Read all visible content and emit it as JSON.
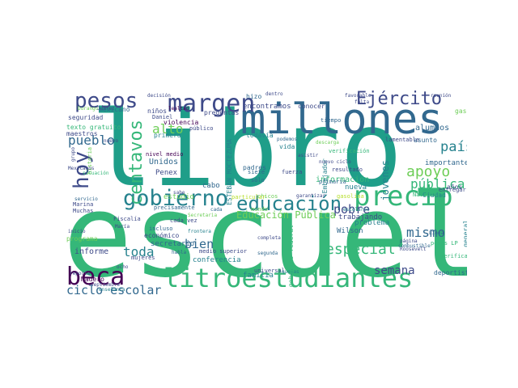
{
  "palette": [
    "#440154",
    "#482878",
    "#3e4a89",
    "#31688e",
    "#26828e",
    "#1f9e89",
    "#35b779",
    "#6ece58",
    "#b5de2b",
    "#fde725"
  ],
  "words": [
    {
      "text": "libro",
      "color": "#1f9e89"
    },
    {
      "text": "escuela",
      "color": "#35b779"
    },
    {
      "text": "millones",
      "color": "#31688e"
    },
    {
      "text": "litroestudiantes",
      "color": "#35b779"
    },
    {
      "text": "margen",
      "color": "#3e4a89"
    },
    {
      "text": "pesos",
      "color": "#3e4a89"
    },
    {
      "text": "gobierno",
      "color": "#26828e"
    },
    {
      "text": "educación",
      "color": "#26828e"
    },
    {
      "text": "precio",
      "color": "#35b779"
    },
    {
      "text": "beca",
      "color": "#440154"
    },
    {
      "text": "centavos",
      "color": "#35b779"
    },
    {
      "text": "hoy",
      "color": "#3e4a89"
    },
    {
      "text": "Ejército",
      "color": "#3e4a89"
    },
    {
      "text": "alto",
      "color": "#6ece58"
    },
    {
      "text": "pueblo",
      "color": "#31688e"
    },
    {
      "text": "país",
      "color": "#26828e"
    },
    {
      "text": "apoyo",
      "color": "#6ece58"
    },
    {
      "text": "pública",
      "color": "#35b779"
    },
    {
      "text": "pobre",
      "color": "#3e4a89"
    },
    {
      "text": "mismo",
      "color": "#31688e"
    },
    {
      "text": "especial",
      "color": "#35b779"
    },
    {
      "text": "toda",
      "color": "#26828e"
    },
    {
      "text": "bien",
      "color": "#31688e"
    },
    {
      "text": "semana",
      "color": "#3e4a89"
    },
    {
      "text": "ciclo escolar",
      "color": "#31688e"
    },
    {
      "text": "Educación Pública",
      "color": "#6ece58"
    },
    {
      "text": "MOCTEZUMA BARRAGÁN",
      "color": "#3e4a89"
    },
    {
      "text": "ESTEBAN MOCTEZUMA",
      "color": "#26828e"
    },
    {
      "text": "jóvenes",
      "color": "#26828e"
    },
    {
      "text": "semana",
      "color": "#3e4a89"
    },
    {
      "text": "mexicano",
      "color": "#31688e"
    },
    {
      "text": "seguridad",
      "color": "#3e4a89"
    },
    {
      "text": "texto gratuito",
      "color": "#35b779"
    },
    {
      "text": "maestros",
      "color": "#3e4a89"
    },
    {
      "text": "alumnos",
      "color": "#31688e"
    },
    {
      "text": "asunto",
      "color": "#31688e"
    },
    {
      "text": "información",
      "color": "#35b779"
    },
    {
      "text": "importante",
      "color": "#31688e"
    },
    {
      "text": "nueva",
      "color": "#26828e"
    },
    {
      "text": "trabajando",
      "color": "#3e4a89"
    },
    {
      "text": "problema",
      "color": "#26828e"
    },
    {
      "text": "Wilson",
      "color": "#31688e"
    },
    {
      "text": "encontramos",
      "color": "#3e4a89"
    },
    {
      "text": "conocer",
      "color": "#3e4a89"
    },
    {
      "text": "Unidos",
      "color": "#31688e"
    },
    {
      "text": "Penex",
      "color": "#3e4a89"
    },
    {
      "text": "estudio",
      "color": "#6ece58"
    },
    {
      "text": "cabo",
      "color": "#31688e"
    },
    {
      "text": "informe",
      "color": "#3e4a89"
    },
    {
      "text": "económico",
      "color": "#3e4a89"
    },
    {
      "text": "secretario",
      "color": "#31688e"
    },
    {
      "text": "conferencia",
      "color": "#26828e"
    },
    {
      "text": "familia",
      "color": "#26828e"
    },
    {
      "text": "Madero",
      "color": "#440154"
    },
    {
      "text": "deportistas",
      "color": "#31688e"
    },
    {
      "text": "general",
      "color": "#26828e"
    },
    {
      "text": "violencia",
      "color": "#440154"
    },
    {
      "text": "preguntas",
      "color": "#3e4a89"
    },
    {
      "text": "primera",
      "color": "#26828e"
    },
    {
      "text": "hizo",
      "color": "#31688e"
    },
    {
      "text": "niños",
      "color": "#3e4a89"
    },
    {
      "text": "gas",
      "color": "#6ece58"
    },
    {
      "text": "Fiscalía",
      "color": "#3e4a89"
    },
    {
      "text": "programa",
      "color": "#6ece58"
    },
    {
      "text": "todavía",
      "color": "#26828e"
    },
    {
      "text": "padres",
      "color": "#31688e"
    },
    {
      "text": "vida",
      "color": "#26828e"
    },
    {
      "text": "precisamente",
      "color": "#31688e"
    },
    {
      "text": "universal",
      "color": "#3e4a89"
    },
    {
      "text": "mundo",
      "color": "#6ece58"
    },
    {
      "text": "verificar",
      "color": "#35b779"
    },
    {
      "text": "Ciudad",
      "color": "#26828e"
    },
    {
      "text": "años",
      "color": "#3e4a89"
    },
    {
      "text": "verificación",
      "color": "#35b779"
    },
    {
      "text": "resultado",
      "color": "#3e4a89"
    },
    {
      "text": "gasolina",
      "color": "#b5de2b"
    },
    {
      "text": "entregar",
      "color": "#3e4a89"
    },
    {
      "text": "Nacional",
      "color": "#35b779"
    },
    {
      "text": "Marina",
      "color": "#3e4a89"
    },
    {
      "text": "Muchas",
      "color": "#3e4a89"
    },
    {
      "text": "cada",
      "color": "#31688e"
    },
    {
      "text": "cada vez",
      "color": "#3e4a89"
    },
    {
      "text": "incluso",
      "color": "#31688e"
    },
    {
      "text": "medio superior",
      "color": "#3e4a89"
    },
    {
      "text": "nivel medio",
      "color": "#440154"
    },
    {
      "text": "público",
      "color": "#3e4a89"
    },
    {
      "text": "Daniel",
      "color": "#3e4a89"
    },
    {
      "text": "lealtad",
      "color": "#440154"
    },
    {
      "text": "decisión",
      "color": "#3e4a89"
    },
    {
      "text": "favorable",
      "color": "#3e4a89"
    },
    {
      "text": "reunión",
      "color": "#3e4a89"
    },
    {
      "text": "falta",
      "color": "#3e4a89"
    },
    {
      "text": "tiempo",
      "color": "#31688e"
    },
    {
      "text": "dentro",
      "color": "#3e4a89"
    },
    {
      "text": "Roosevelt",
      "color": "#3e4a89"
    },
    {
      "text": "segunda",
      "color": "#31688e"
    },
    {
      "text": "quejas",
      "color": "#26828e"
    },
    {
      "text": "escolares",
      "color": "#26828e"
    },
    {
      "text": "gobierno federal",
      "color": "#35b779"
    },
    {
      "text": "Secretaria",
      "color": "#6ece58"
    },
    {
      "text": "Embajador",
      "color": "#26828e"
    },
    {
      "text": "primaria",
      "color": "#31688e"
    },
    {
      "text": "garantizar",
      "color": "#3e4a89"
    },
    {
      "text": "chicos",
      "color": "#6ece58"
    },
    {
      "text": "particular",
      "color": "#b5de2b"
    },
    {
      "text": "mujeres",
      "color": "#3e4a89"
    },
    {
      "text": "servicio",
      "color": "#31688e"
    },
    {
      "text": "reporta",
      "color": "#3e4a89"
    },
    {
      "text": "ocho",
      "color": "#3e4a89"
    },
    {
      "text": "habla",
      "color": "#31688e"
    },
    {
      "text": "completa",
      "color": "#3e4a89"
    },
    {
      "text": "septiembre",
      "color": "#3e4a89"
    },
    {
      "text": "enseñanza",
      "color": "#26828e"
    },
    {
      "text": "historia",
      "color": "#6ece58"
    },
    {
      "text": "situación",
      "color": "#35b779"
    },
    {
      "text": "frontera",
      "color": "#26828e"
    },
    {
      "text": "fuerza",
      "color": "#3e4a89"
    },
    {
      "text": "siete",
      "color": "#31688e"
    },
    {
      "text": "sólo",
      "color": "#31688e"
    },
    {
      "text": "página",
      "color": "#3e4a89"
    },
    {
      "text": "combustible",
      "color": "#31688e"
    },
    {
      "text": "Línea",
      "color": "#31688e"
    },
    {
      "text": "sabe",
      "color": "#3e4a89"
    },
    {
      "text": "nuevo ciclo",
      "color": "#3e4a89"
    },
    {
      "text": "descarga",
      "color": "#6ece58"
    },
    {
      "text": "lamentable",
      "color": "#3e4a89"
    },
    {
      "text": "podemos",
      "color": "#31688e"
    },
    {
      "text": "asistir",
      "color": "#3e4a89"
    },
    {
      "text": "inicio",
      "color": "#3e4a89"
    },
    {
      "text": "María",
      "color": "#3e4a89"
    },
    {
      "text": "nuevo",
      "color": "#3e4a89"
    },
    {
      "text": "grupo",
      "color": "#3e4a89"
    },
    {
      "text": "Durango",
      "color": "#6ece58"
    },
    {
      "text": "Juárez",
      "color": "#3e4a89"
    },
    {
      "text": "pesos LP",
      "color": "#35b779"
    },
    {
      "text": "Mexicanos",
      "color": "#3e4a89"
    }
  ]
}
